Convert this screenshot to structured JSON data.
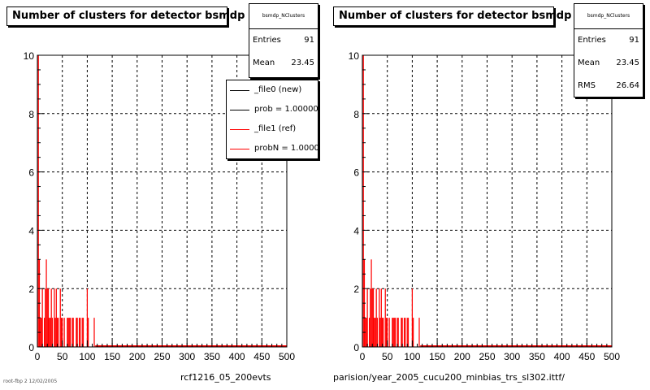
{
  "footer": {
    "left_label": "rcf1216_05_200evts",
    "right_label": "parision/year_2005_cucu200_minbias_trs_sl302.ittf/",
    "corner_label": "root-fbp 2 12/02/2005"
  },
  "stats": {
    "left": {
      "name": "bsmdp_NClusters",
      "entries_label": "Entries",
      "entries": "91",
      "mean_label": "Mean",
      "mean": "23.45"
    },
    "right": {
      "name": "bsmdp_NClusters",
      "entries_label": "Entries",
      "entries": "91",
      "mean_label": "Mean",
      "mean": "23.45",
      "rms_label": "RMS",
      "rms": "26.64"
    }
  },
  "legend": {
    "entries": [
      {
        "label": "_file0 (new)",
        "color": "#000000"
      },
      {
        "label": "prob = 1.000000",
        "color": "#000000"
      },
      {
        "label": "_file1 (ref)",
        "color": "#ff0000"
      },
      {
        "label": "probN = 1.000000",
        "color": "#ff0000"
      }
    ]
  },
  "colors": {
    "hist": "#ff0000",
    "axis": "#000000",
    "grid": "#000000"
  },
  "chart_data": [
    {
      "type": "bar",
      "title": "Number of clusters for detector bsmdp",
      "xlim": [
        0,
        500
      ],
      "ylim": [
        0,
        10
      ],
      "xticks": [
        0,
        50,
        100,
        150,
        200,
        250,
        300,
        350,
        400,
        450,
        500
      ],
      "yticks": [
        0,
        2,
        4,
        6,
        8,
        10
      ],
      "grid": true,
      "bin_width": 2,
      "x": [
        2,
        4,
        6,
        8,
        10,
        12,
        14,
        16,
        18,
        20,
        22,
        24,
        26,
        28,
        30,
        32,
        34,
        36,
        38,
        40,
        42,
        44,
        46,
        48,
        50,
        52,
        54,
        56,
        58,
        60,
        62,
        64,
        66,
        68,
        70,
        72,
        74,
        76,
        78,
        80,
        82,
        84,
        86,
        88,
        90,
        92,
        94,
        96,
        98,
        100,
        102,
        104,
        106,
        108,
        110,
        112,
        114,
        116
      ],
      "values": [
        10,
        3,
        1,
        1,
        2,
        0,
        1,
        2,
        3,
        2,
        2,
        1,
        1,
        2,
        1,
        0,
        2,
        1,
        2,
        1,
        1,
        0,
        2,
        1,
        1,
        0,
        1,
        0,
        0,
        1,
        1,
        1,
        1,
        0,
        1,
        1,
        0,
        0,
        1,
        1,
        0,
        1,
        1,
        0,
        1,
        1,
        0,
        0,
        0,
        2,
        1,
        0,
        0,
        0,
        0,
        0,
        1,
        0
      ]
    },
    {
      "type": "bar",
      "title": "Number of clusters for detector bsmdp",
      "xlim": [
        0,
        500
      ],
      "ylim": [
        0,
        10
      ],
      "xticks": [
        0,
        50,
        100,
        150,
        200,
        250,
        300,
        350,
        400,
        450,
        500
      ],
      "yticks": [
        0,
        2,
        4,
        6,
        8,
        10
      ],
      "grid": true,
      "bin_width": 2,
      "x": [
        2,
        4,
        6,
        8,
        10,
        12,
        14,
        16,
        18,
        20,
        22,
        24,
        26,
        28,
        30,
        32,
        34,
        36,
        38,
        40,
        42,
        44,
        46,
        48,
        50,
        52,
        54,
        56,
        58,
        60,
        62,
        64,
        66,
        68,
        70,
        72,
        74,
        76,
        78,
        80,
        82,
        84,
        86,
        88,
        90,
        92,
        94,
        96,
        98,
        100,
        102,
        104,
        106,
        108,
        110,
        112,
        114,
        116
      ],
      "values": [
        10,
        3,
        1,
        1,
        2,
        0,
        1,
        2,
        3,
        2,
        2,
        1,
        1,
        2,
        1,
        0,
        2,
        1,
        2,
        1,
        1,
        0,
        2,
        1,
        1,
        0,
        1,
        0,
        0,
        1,
        1,
        1,
        1,
        0,
        1,
        1,
        0,
        0,
        1,
        1,
        0,
        1,
        1,
        0,
        1,
        1,
        0,
        0,
        0,
        2,
        1,
        0,
        0,
        0,
        0,
        0,
        1,
        0
      ]
    }
  ]
}
